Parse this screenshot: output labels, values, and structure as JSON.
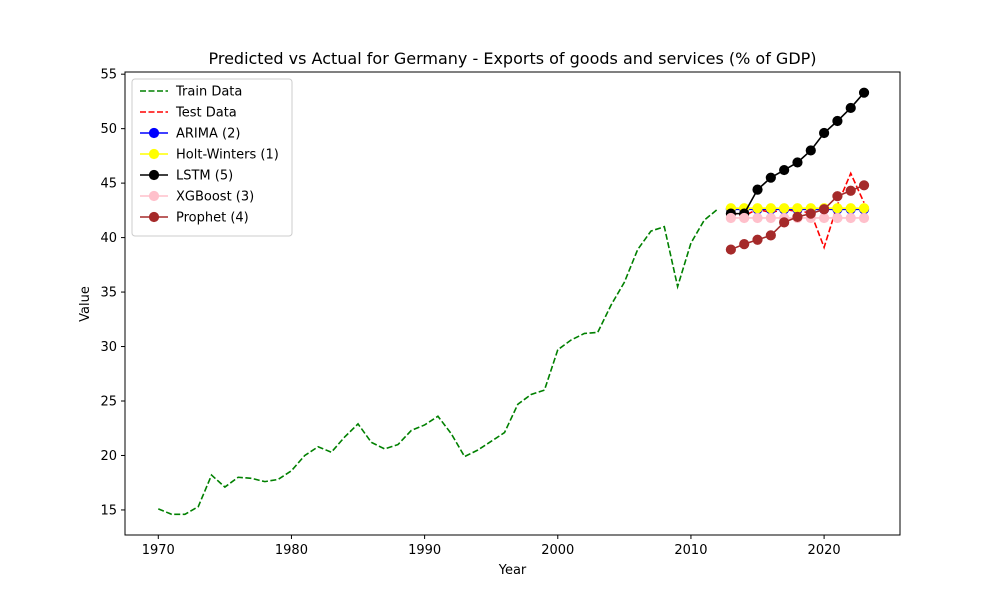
{
  "chart_data": {
    "type": "line",
    "title": "Predicted vs Actual for Germany - Exports of goods and services (% of GDP)",
    "xlabel": "Year",
    "ylabel": "Value",
    "xlim": [
      1967.5,
      2025.7
    ],
    "ylim": [
      12.7,
      55.2
    ],
    "x_ticks": [
      1970,
      1980,
      1990,
      2000,
      2010,
      2020
    ],
    "y_ticks": [
      15,
      20,
      25,
      30,
      35,
      40,
      45,
      50,
      55
    ],
    "legend_position": "top-left",
    "series": [
      {
        "name": "Train Data",
        "color": "#008000",
        "style": "dashed",
        "marker": false,
        "x": [
          1970,
          1971,
          1972,
          1973,
          1974,
          1975,
          1976,
          1977,
          1978,
          1979,
          1980,
          1981,
          1982,
          1983,
          1984,
          1985,
          1986,
          1987,
          1988,
          1989,
          1990,
          1991,
          1992,
          1993,
          1994,
          1995,
          1996,
          1997,
          1998,
          1999,
          2000,
          2001,
          2002,
          2003,
          2004,
          2005,
          2006,
          2007,
          2008,
          2009,
          2010,
          2011,
          2012
        ],
        "values": [
          15.1,
          14.6,
          14.6,
          15.3,
          18.2,
          17.1,
          18.0,
          17.9,
          17.6,
          17.8,
          18.6,
          20.0,
          20.8,
          20.3,
          21.7,
          22.9,
          21.2,
          20.6,
          21.0,
          22.3,
          22.8,
          23.6,
          22.0,
          19.9,
          20.5,
          21.3,
          22.1,
          24.7,
          25.6,
          26.0,
          29.7,
          30.6,
          31.2,
          31.3,
          33.8,
          35.9,
          38.9,
          40.6,
          41.0,
          35.5,
          39.5,
          41.6,
          42.6
        ]
      },
      {
        "name": "Test Data",
        "color": "#ff0000",
        "style": "dashed",
        "marker": false,
        "x": [
          2013,
          2014,
          2015,
          2016,
          2017,
          2018,
          2019,
          2020,
          2021,
          2022,
          2023
        ],
        "values": [
          42.3,
          42.0,
          42.6,
          42.3,
          42.6,
          42.4,
          42.3,
          39.1,
          43.0,
          45.9,
          43.2
        ]
      },
      {
        "name": "ARIMA (2)",
        "color": "#0000ff",
        "style": "solid",
        "marker": true,
        "x": [
          2013,
          2014,
          2015,
          2016,
          2017,
          2018,
          2019,
          2020,
          2021,
          2022,
          2023
        ],
        "values": [
          42.6,
          42.6,
          42.6,
          42.6,
          42.6,
          42.6,
          42.6,
          42.6,
          42.6,
          42.6,
          42.6
        ]
      },
      {
        "name": "Holt-Winters (1)",
        "color": "#ffff00",
        "style": "solid",
        "marker": true,
        "x": [
          2013,
          2014,
          2015,
          2016,
          2017,
          2018,
          2019,
          2020,
          2021,
          2022,
          2023
        ],
        "values": [
          42.7,
          42.7,
          42.7,
          42.7,
          42.7,
          42.7,
          42.7,
          42.7,
          42.7,
          42.7,
          42.7
        ]
      },
      {
        "name": "LSTM (5)",
        "color": "#000000",
        "style": "solid",
        "marker": true,
        "x": [
          2013,
          2014,
          2015,
          2016,
          2017,
          2018,
          2019,
          2020,
          2021,
          2022,
          2023
        ],
        "values": [
          42.2,
          42.2,
          44.4,
          45.5,
          46.2,
          46.9,
          48.0,
          49.6,
          50.7,
          51.9,
          53.3
        ]
      },
      {
        "name": "XGBoost (3)",
        "color": "#ffc0cb",
        "style": "solid",
        "marker": true,
        "x": [
          2013,
          2014,
          2015,
          2016,
          2017,
          2018,
          2019,
          2020,
          2021,
          2022,
          2023
        ],
        "values": [
          41.8,
          41.8,
          41.8,
          41.8,
          41.8,
          41.8,
          41.8,
          41.8,
          41.8,
          41.8,
          41.8
        ]
      },
      {
        "name": "Prophet (4)",
        "color": "#a52a2a",
        "style": "solid",
        "marker": true,
        "x": [
          2013,
          2014,
          2015,
          2016,
          2017,
          2018,
          2019,
          2020,
          2021,
          2022,
          2023
        ],
        "values": [
          38.9,
          39.4,
          39.8,
          40.2,
          41.4,
          41.9,
          42.2,
          42.6,
          43.8,
          44.3,
          44.8
        ]
      }
    ]
  }
}
